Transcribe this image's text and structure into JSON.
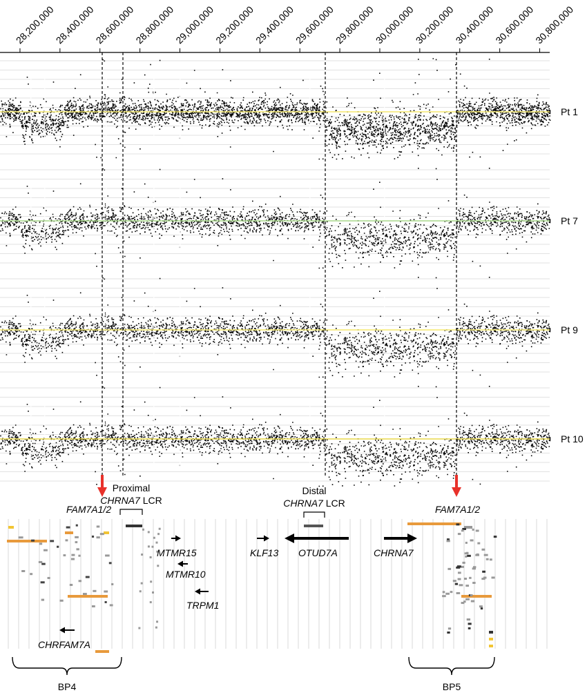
{
  "chart_data": {
    "type": "scatter",
    "x_axis": {
      "range": [
        28100000,
        30850000
      ],
      "ticks": [
        28200000,
        28400000,
        28600000,
        28800000,
        29000000,
        29200000,
        29400000,
        29600000,
        29800000,
        30000000,
        30200000,
        30400000,
        30600000,
        30800000
      ],
      "tick_labels": [
        "28,200,000",
        "28,400,000",
        "28,600,000",
        "28,800,000",
        "29,000,000",
        "29,200,000",
        "29,400,000",
        "29,600,000",
        "29,800,000",
        "30,000,000",
        "30,200,000",
        "30,400,000",
        "30,600,000",
        "30,800,000"
      ]
    },
    "panels": [
      {
        "label": "Pt 1",
        "baseline_color": "#f5e96e"
      },
      {
        "label": "Pt 7",
        "baseline_color": "#a8d98a"
      },
      {
        "label": "Pt 9",
        "baseline_color": "#f5e96e"
      },
      {
        "label": "Pt 10",
        "baseline_color": "#e8d84a"
      }
    ],
    "deletion": {
      "start": 28500000,
      "end": 29725000,
      "shading": "low copy region between breakpoints"
    },
    "breakpoint_lines": [
      28560000,
      28660000,
      29725000,
      30365000
    ],
    "breakpoint_arrows": [
      28560000,
      30365000
    ],
    "lcr_brackets": [
      {
        "label_line1": "Proximal",
        "gene": "CHRNA7",
        "suffix": " LCR",
        "start": 28670000,
        "end": 28780000
      },
      {
        "label_line1": "Distal",
        "gene": "CHRNA7",
        "suffix": " LCR",
        "start": 29580000,
        "end": 29690000
      }
    ],
    "genes": [
      {
        "name": "FAM7A1/2",
        "side": "left"
      },
      {
        "name": "FAM7A1/2",
        "side": "right"
      },
      {
        "name": "MTMR15",
        "direction": "right"
      },
      {
        "name": "MTMR10",
        "direction": "left"
      },
      {
        "name": "TRPM1",
        "direction": "left"
      },
      {
        "name": "KLF13",
        "direction": "right"
      },
      {
        "name": "OTUD7A",
        "direction": "left"
      },
      {
        "name": "CHRNA7",
        "direction": "right"
      },
      {
        "name": "CHRFAM7A",
        "direction": "left"
      }
    ],
    "breakpoint_regions": [
      {
        "label": "BP4",
        "start": 28100000,
        "end": 28620000
      },
      {
        "label": "BP5",
        "start": 30150000,
        "end": 30575000
      }
    ],
    "colors": {
      "points": "#000000",
      "arrows": "#e8312a",
      "segdup_orange": "#e89a3c",
      "segdup_yellow": "#f2c534",
      "segdup_gray": "#999999"
    }
  }
}
